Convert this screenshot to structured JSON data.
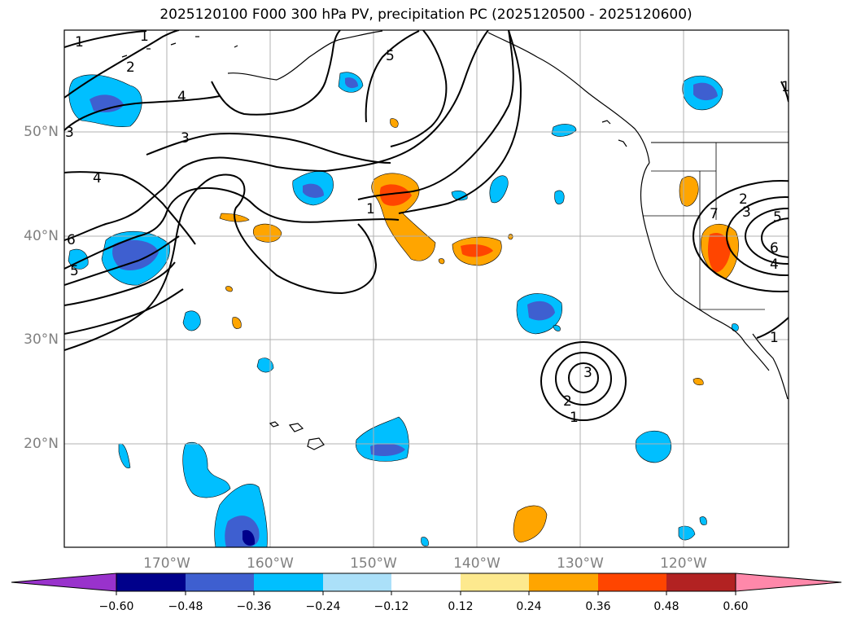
{
  "title": "2025120100 F000 300 hPa PV, precipitation PC (2025120500 - 2025120600)",
  "colors": {
    "ocean": "#ffffff",
    "grid": "#b0b0b0",
    "pv_contour": "#000000",
    "neg_light": "#abe0f9",
    "neg_mid": "#00bfff",
    "neg_strong": "#3e5fd0",
    "neg_max": "#00008b",
    "pos_light": "#fde98e",
    "pos_mid": "#ffa500",
    "pos_strong": "#ff4500",
    "pos_max": "#b22222"
  },
  "lat_labels": [
    "50°N",
    "40°N",
    "30°N",
    "20°N"
  ],
  "lon_labels": [
    "170°W",
    "160°W",
    "150°W",
    "140°W",
    "130°W",
    "120°W"
  ],
  "colorbar": {
    "colors": [
      "#9932cc",
      "#00008b",
      "#3e5fd0",
      "#00bfff",
      "#abe0f9",
      "#ffffff",
      "#fde98e",
      "#ffa500",
      "#ff4500",
      "#b22222",
      "#ff88aa"
    ],
    "tick_labels": [
      "−0.60",
      "−0.48",
      "−0.36",
      "−0.24",
      "−0.12",
      "0.12",
      "0.24",
      "0.36",
      "0.48",
      "0.60"
    ]
  },
  "contour_labels": [
    "1",
    "1",
    "2",
    "4",
    "3",
    "3",
    "4",
    "5",
    "6",
    "5",
    "1",
    "1",
    "2",
    "3",
    "5",
    "6",
    "4",
    "7",
    "1",
    "3",
    "2",
    "1"
  ]
}
